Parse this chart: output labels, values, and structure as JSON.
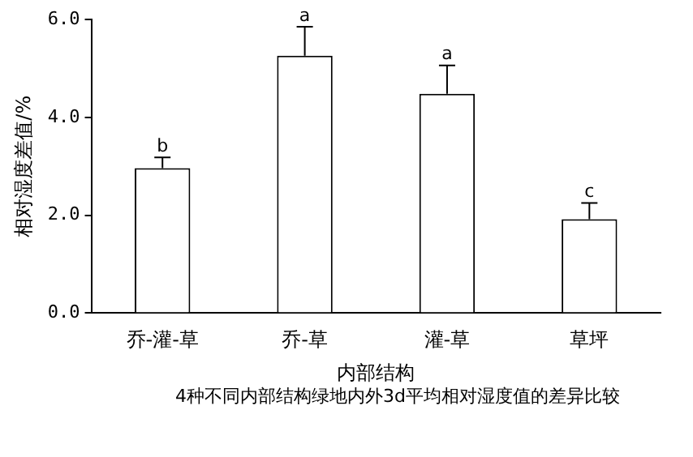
{
  "chart_data": {
    "type": "bar",
    "xlabel": "内部结构",
    "ylabel": "相对湿度差值/%",
    "categories": [
      "乔-灌-草",
      "乔-草",
      "灌-草",
      "草坪"
    ],
    "values": [
      2.96,
      5.26,
      4.48,
      1.92
    ],
    "color": "#ffffff",
    "errors": [
      [
        2.96,
        3.18
      ],
      [
        5.26,
        5.85
      ],
      [
        4.48,
        5.06
      ],
      [
        1.92,
        2.25
      ]
    ],
    "ylim": [
      0,
      6
    ],
    "yticks": [
      {
        "value": 0,
        "label": "0.0"
      },
      {
        "value": 2,
        "label": "2.0"
      },
      {
        "value": 4,
        "label": "4.0"
      },
      {
        "value": 6,
        "label": "6.0"
      }
    ],
    "grid": false,
    "legend": false,
    "annotations": [
      {
        "text": "b",
        "x": "乔-灌-草",
        "y": 3.18
      },
      {
        "text": "a",
        "x": "乔-草",
        "y": 5.85
      },
      {
        "text": "a",
        "x": "灌-草",
        "y": 5.06
      },
      {
        "text": "c",
        "x": "草坪",
        "y": 2.25
      },
      "4种不同内部结构绿地内外3d平均相对湿度值的差异比较"
    ]
  }
}
